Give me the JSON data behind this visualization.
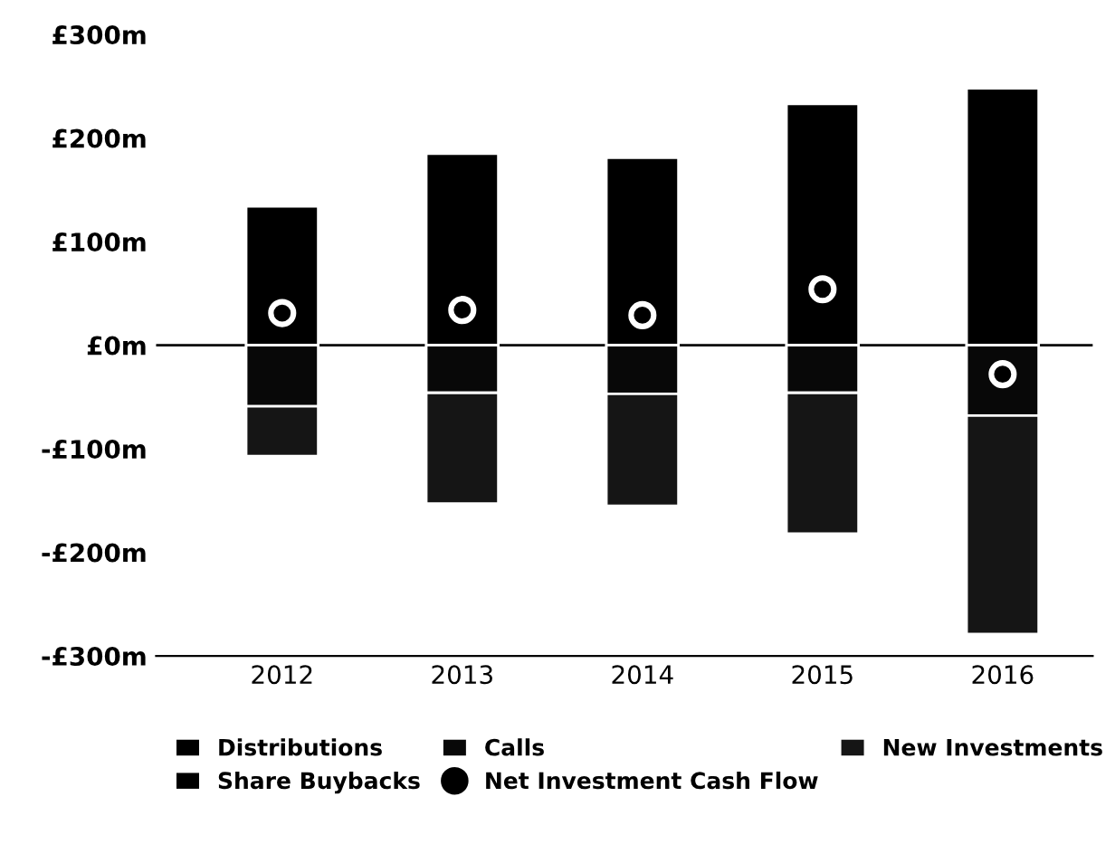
{
  "chart_data": {
    "type": "bar",
    "stacked": true,
    "categories": [
      "2012",
      "2013",
      "2014",
      "2015",
      "2016"
    ],
    "series": [
      {
        "name": "Distributions",
        "color": "#000000",
        "values": [
          134,
          185,
          181,
          233,
          248
        ]
      },
      {
        "name": "Calls",
        "color": "#080808",
        "values": [
          -59,
          -46,
          -47,
          -46,
          -68
        ]
      },
      {
        "name": "New Investments",
        "color": "#151515",
        "values": [
          -48,
          -107,
          -108,
          -136,
          -211
        ]
      },
      {
        "name": "Share Buybacks",
        "color": "#000000",
        "values": [
          null,
          null,
          null,
          null,
          null
        ]
      },
      {
        "name": "Net Investment Cash Flow",
        "type": "scatter",
        "color": "#000000",
        "values": [
          31,
          34,
          29,
          54,
          -28
        ]
      }
    ],
    "ylim": [
      -300,
      300
    ],
    "yticks": [
      {
        "value": 300,
        "label": "£300m"
      },
      {
        "value": 200,
        "label": "£200m"
      },
      {
        "value": 100,
        "label": "£100m"
      },
      {
        "value": 0,
        "label": "£0m"
      },
      {
        "value": -100,
        "label": "-£100m"
      },
      {
        "value": -200,
        "label": "-£200m"
      },
      {
        "value": -300,
        "label": "-£300m"
      }
    ],
    "ref_lines": [
      {
        "axis": "y",
        "value": 0,
        "color": "#000000"
      }
    ],
    "marker": "circle",
    "grid": false,
    "legend": "bottom"
  }
}
